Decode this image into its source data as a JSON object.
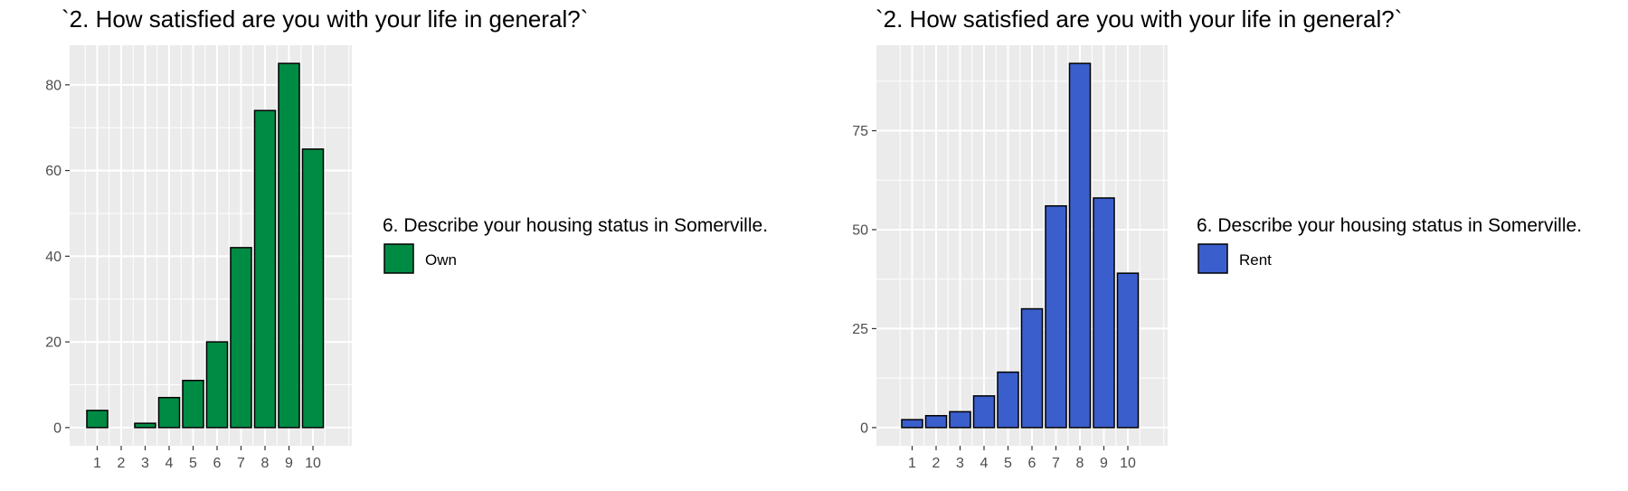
{
  "chart_data": [
    {
      "type": "bar",
      "title": "`2. How satisfied are you with your life in general?`",
      "categories": [
        "1",
        "2",
        "3",
        "4",
        "5",
        "6",
        "7",
        "8",
        "9",
        "10"
      ],
      "values": [
        4,
        0,
        1,
        7,
        11,
        20,
        42,
        74,
        85,
        65
      ],
      "yticks": [
        0,
        20,
        40,
        60,
        80
      ],
      "ylim": [
        -4.25,
        89.25
      ],
      "xlabel": "",
      "ylabel": "",
      "grid": true,
      "legend": {
        "title": "6. Describe your housing status in Somerville.",
        "label": "Own",
        "position": "right"
      },
      "fill_color": "#008B45",
      "edge_color": "#000000",
      "panel_color": "#EBEBEB"
    },
    {
      "type": "bar",
      "title": "`2. How satisfied are you with your life in general?`",
      "categories": [
        "1",
        "2",
        "3",
        "4",
        "5",
        "6",
        "7",
        "8",
        "9",
        "10"
      ],
      "values": [
        2,
        3,
        4,
        8,
        14,
        30,
        56,
        92,
        58,
        39
      ],
      "yticks": [
        0,
        25,
        50,
        75
      ],
      "ylim": [
        -4.6,
        96.6
      ],
      "xlabel": "",
      "ylabel": "",
      "grid": true,
      "legend": {
        "title": "6. Describe your housing status in Somerville.",
        "label": "Rent",
        "position": "right"
      },
      "fill_color": "#3A5FCD",
      "edge_color": "#000000",
      "panel_color": "#EBEBEB"
    }
  ]
}
